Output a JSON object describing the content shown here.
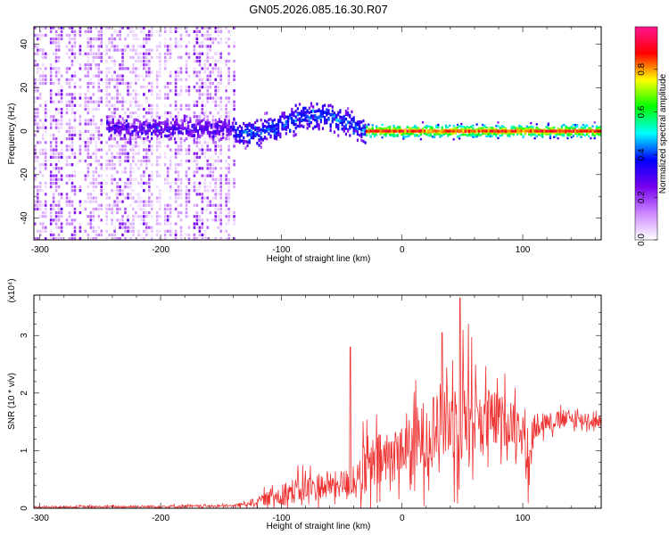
{
  "title": "GN05.2026.085.16.30.R07",
  "chart_data": [
    {
      "type": "heatmap",
      "xlabel": "Height of straight line (km)",
      "ylabel": "Frequency (Hz)",
      "xlim": [
        -305,
        165
      ],
      "ylim": [
        -50,
        48
      ],
      "xticks": [
        -300,
        -200,
        -100,
        0,
        100
      ],
      "yticks": [
        -40,
        -20,
        0,
        20,
        40
      ],
      "colorbar": {
        "label": "Normalized spectral amplitude",
        "range": [
          0,
          1
        ],
        "ticks": [
          "0.0",
          "0.2",
          "0.4",
          "0.6",
          "0.8"
        ],
        "tick_values": [
          0,
          0.2,
          0.4,
          0.6,
          0.8
        ],
        "colors": [
          "#ffffff",
          "#cc88ff",
          "#7700ee",
          "#0000ff",
          "#00ffff",
          "#00ff00",
          "#ffff00",
          "#ff0000",
          "#ff1493"
        ]
      },
      "bands": [
        {
          "x": [
            -245,
            -140
          ],
          "center_hz": 0,
          "width_hz": 8,
          "intensity": 0.3
        },
        {
          "x": [
            -140,
            -30
          ],
          "center_hz": 3,
          "width_hz": 10,
          "intensity": 0.4
        },
        {
          "x": [
            -30,
            165
          ],
          "center_hz": 0,
          "width_hz": 5,
          "intensity": 0.85
        }
      ],
      "noise_region": {
        "x": [
          -305,
          -140
        ],
        "hz": [
          -50,
          48
        ],
        "intensity": 0.2
      }
    },
    {
      "type": "line",
      "xlabel": "Height of straight line (km)",
      "ylabel": "SNR (10 * v/v)",
      "exponent_label": "(x10⁴)",
      "xlim": [
        -305,
        165
      ],
      "ylim": [
        0,
        3.7
      ],
      "xticks": [
        -300,
        -200,
        -100,
        0,
        100
      ],
      "yticks": [
        0,
        1,
        2,
        3
      ],
      "color": "#ee3333",
      "envelope": {
        "x": [
          -305,
          -200,
          -140,
          -120,
          -100,
          -80,
          -60,
          -40,
          -30,
          -20,
          -10,
          0,
          10,
          20,
          30,
          40,
          50,
          60,
          70,
          80,
          90,
          100,
          105,
          110,
          120,
          140,
          165
        ],
        "mean": [
          0.02,
          0.03,
          0.04,
          0.12,
          0.25,
          0.35,
          0.4,
          0.45,
          0.6,
          0.8,
          0.9,
          1.0,
          1.1,
          1.3,
          1.45,
          1.55,
          1.6,
          1.6,
          1.55,
          1.5,
          1.5,
          1.45,
          0.6,
          1.5,
          1.5,
          1.55,
          1.5
        ],
        "amplitude": [
          0.02,
          0.03,
          0.03,
          0.1,
          0.3,
          0.35,
          0.3,
          0.4,
          0.8,
          0.7,
          0.7,
          0.6,
          0.8,
          0.9,
          1.0,
          1.1,
          1.2,
          1.0,
          0.8,
          0.7,
          0.6,
          0.5,
          0.5,
          0.4,
          0.25,
          0.2,
          0.15
        ]
      },
      "peaks": [
        {
          "x": -43,
          "y": 2.8
        },
        {
          "x": 48,
          "y": 3.65
        },
        {
          "x": 33,
          "y": 3.05
        },
        {
          "x": 55,
          "y": 3.2
        }
      ]
    }
  ]
}
